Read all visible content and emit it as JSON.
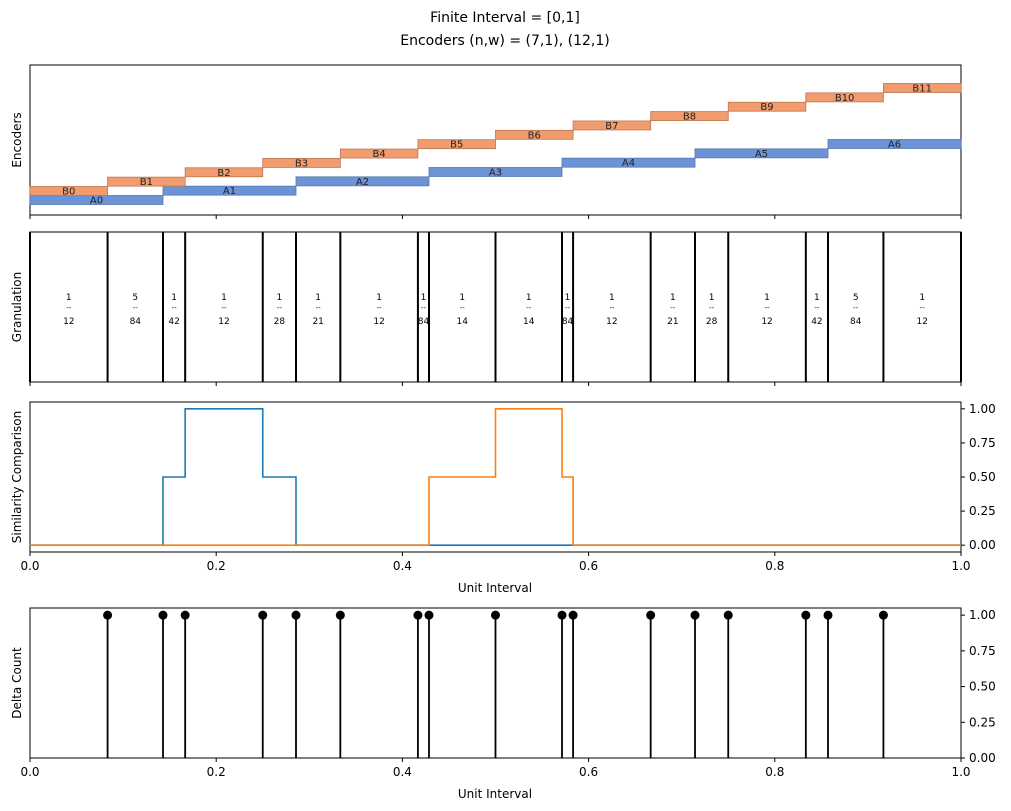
{
  "title_line1": "Finite Interval = [0,1]",
  "title_line2": "Encoders (n,w) = (7,1), (12,1)",
  "colors": {
    "encoder_a": "#6b93d6",
    "encoder_b": "#f09c6e",
    "similarity_a": "#1f77b4",
    "similarity_b": "#ff7f0e",
    "stem": "#000000"
  },
  "chart_data": [
    {
      "type": "bar",
      "subtype": "horizontal-interval-bars",
      "ylabel": "Encoders",
      "xlim": [
        0,
        1
      ],
      "series": [
        {
          "name": "A",
          "bars": [
            {
              "label": "A0",
              "start": 0.0,
              "end": 0.142857,
              "level": 0
            },
            {
              "label": "A1",
              "start": 0.142857,
              "end": 0.285714,
              "level": 1
            },
            {
              "label": "A2",
              "start": 0.285714,
              "end": 0.428571,
              "level": 2
            },
            {
              "label": "A3",
              "start": 0.428571,
              "end": 0.571429,
              "level": 3
            },
            {
              "label": "A4",
              "start": 0.571429,
              "end": 0.714286,
              "level": 4
            },
            {
              "label": "A5",
              "start": 0.714286,
              "end": 0.857143,
              "level": 5
            },
            {
              "label": "A6",
              "start": 0.857143,
              "end": 1.0,
              "level": 6
            }
          ]
        },
        {
          "name": "B",
          "bars": [
            {
              "label": "B0",
              "start": 0.0,
              "end": 0.083333,
              "level": 0
            },
            {
              "label": "B1",
              "start": 0.083333,
              "end": 0.166667,
              "level": 1
            },
            {
              "label": "B2",
              "start": 0.166667,
              "end": 0.25,
              "level": 2
            },
            {
              "label": "B3",
              "start": 0.25,
              "end": 0.333333,
              "level": 3
            },
            {
              "label": "B4",
              "start": 0.333333,
              "end": 0.416667,
              "level": 4
            },
            {
              "label": "B5",
              "start": 0.416667,
              "end": 0.5,
              "level": 5
            },
            {
              "label": "B6",
              "start": 0.5,
              "end": 0.583333,
              "level": 6
            },
            {
              "label": "B7",
              "start": 0.583333,
              "end": 0.666667,
              "level": 7
            },
            {
              "label": "B8",
              "start": 0.666667,
              "end": 0.75,
              "level": 8
            },
            {
              "label": "B9",
              "start": 0.75,
              "end": 0.833333,
              "level": 9
            },
            {
              "label": "B10",
              "start": 0.833333,
              "end": 0.916667,
              "level": 10
            },
            {
              "label": "B11",
              "start": 0.916667,
              "end": 1.0,
              "level": 11
            }
          ]
        }
      ]
    },
    {
      "type": "table",
      "subtype": "granulation",
      "ylabel": "Granulation",
      "xlim": [
        0,
        1
      ],
      "boundaries": [
        0,
        0.083333,
        0.142857,
        0.166667,
        0.25,
        0.285714,
        0.333333,
        0.416667,
        0.428571,
        0.5,
        0.571429,
        0.583333,
        0.666667,
        0.714286,
        0.75,
        0.833333,
        0.857143,
        0.916667,
        1.0
      ],
      "cells": [
        {
          "num": "1",
          "den": "12"
        },
        {
          "num": "5",
          "den": "84"
        },
        {
          "num": "1",
          "den": "42"
        },
        {
          "num": "1",
          "den": "12"
        },
        {
          "num": "1",
          "den": "28"
        },
        {
          "num": "1",
          "den": "21"
        },
        {
          "num": "1",
          "den": "12"
        },
        {
          "num": "1",
          "den": "84"
        },
        {
          "num": "1",
          "den": "14"
        },
        {
          "num": "1",
          "den": "14"
        },
        {
          "num": "1",
          "den": "84"
        },
        {
          "num": "1",
          "den": "12"
        },
        {
          "num": "1",
          "den": "21"
        },
        {
          "num": "1",
          "den": "28"
        },
        {
          "num": "1",
          "den": "12"
        },
        {
          "num": "1",
          "den": "42"
        },
        {
          "num": "5",
          "den": "84"
        },
        {
          "num": "1",
          "den": "12"
        }
      ],
      "frac_bar": "--"
    },
    {
      "type": "line",
      "ylabel": "Similarity Comparison",
      "xlabel": "Unit Interval",
      "xlim": [
        0,
        1
      ],
      "ylim": [
        -0.05,
        1.05
      ],
      "xticks": [
        "0.0",
        "0.2",
        "0.4",
        "0.6",
        "0.8",
        "1.0"
      ],
      "yticks": [
        "0.00",
        "0.25",
        "0.50",
        "0.75",
        "1.00"
      ],
      "series": [
        {
          "name": "A",
          "points": [
            [
              0,
              0
            ],
            [
              0.142857,
              0
            ],
            [
              0.142857,
              0.5
            ],
            [
              0.166667,
              0.5
            ],
            [
              0.166667,
              1
            ],
            [
              0.25,
              1
            ],
            [
              0.25,
              0.5
            ],
            [
              0.285714,
              0.5
            ],
            [
              0.285714,
              0
            ],
            [
              1,
              0
            ]
          ]
        },
        {
          "name": "B",
          "points": [
            [
              0,
              0
            ],
            [
              0.428571,
              0
            ],
            [
              0.428571,
              0.5
            ],
            [
              0.5,
              0.5
            ],
            [
              0.5,
              1
            ],
            [
              0.571429,
              1
            ],
            [
              0.571429,
              0.5
            ],
            [
              0.583333,
              0.5
            ],
            [
              0.583333,
              0
            ],
            [
              1,
              0
            ]
          ]
        }
      ]
    },
    {
      "type": "scatter",
      "subtype": "stem",
      "ylabel": "Delta Count",
      "xlabel": "Unit Interval",
      "xlim": [
        0,
        1
      ],
      "ylim": [
        0,
        1.05
      ],
      "xticks": [
        "0.0",
        "0.2",
        "0.4",
        "0.6",
        "0.8",
        "1.0"
      ],
      "yticks": [
        "0.00",
        "0.25",
        "0.50",
        "0.75",
        "1.00"
      ],
      "x": [
        0.083333,
        0.142857,
        0.166667,
        0.25,
        0.285714,
        0.333333,
        0.416667,
        0.428571,
        0.5,
        0.571429,
        0.583333,
        0.666667,
        0.714286,
        0.75,
        0.833333,
        0.857143,
        0.916667
      ],
      "values": [
        1,
        1,
        1,
        1,
        1,
        1,
        1,
        1,
        1,
        1,
        1,
        1,
        1,
        1,
        1,
        1,
        1
      ]
    }
  ]
}
